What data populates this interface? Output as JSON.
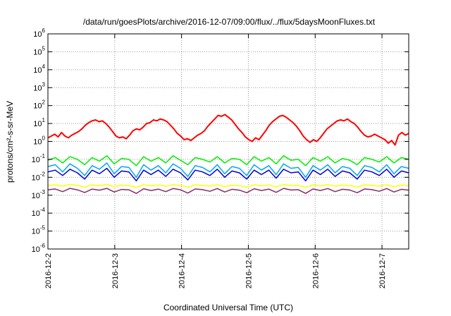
{
  "chart_data": {
    "type": "line",
    "title": "/data/run/goesPlots/archive/2016-12-07/09:00/flux/../flux/5daysMoonFluxes.txt",
    "xlabel": "Coordinated Universal Time (UTC)",
    "ylabel": "protons/cm²-s-sr-MeV",
    "y_scale": "log",
    "y_exponent_range": [
      -6,
      6
    ],
    "x_ticks": [
      "2016-12-2",
      "2016-12-3",
      "2016-12-4",
      "2016-12-5",
      "2016-12-6",
      "2016-12-7"
    ],
    "x_range_days": [
      0,
      5.4
    ],
    "grid": true,
    "legend": "none",
    "series": [
      {
        "color": "#ff0000",
        "log_values": [
          0.2,
          0.3,
          0.4,
          0.25,
          0.5,
          0.3,
          0.2,
          0.35,
          0.45,
          0.55,
          0.7,
          0.9,
          1.05,
          1.15,
          1.2,
          1.1,
          1.15,
          1.0,
          0.8,
          0.55,
          0.3,
          0.2,
          0.25,
          0.15,
          0.35,
          0.6,
          0.7,
          0.65,
          0.8,
          1.0,
          1.05,
          1.2,
          1.15,
          1.25,
          1.2,
          1.1,
          0.9,
          0.7,
          0.45,
          0.3,
          0.1,
          0.15,
          0.05,
          0.2,
          0.35,
          0.45,
          0.6,
          0.85,
          1.05,
          1.25,
          1.45,
          1.4,
          1.5,
          1.35,
          1.2,
          0.95,
          0.7,
          0.5,
          0.25,
          0.1,
          0.0,
          0.2,
          0.1,
          0.35,
          0.6,
          0.9,
          1.1,
          1.25,
          1.4,
          1.45,
          1.35,
          1.2,
          1.05,
          0.85,
          0.6,
          0.3,
          0.1,
          -0.05,
          0.1,
          0.0,
          0.2,
          0.45,
          0.7,
          0.85,
          1.0,
          1.15,
          1.2,
          1.15,
          1.25,
          1.1,
          1.0,
          0.8,
          0.55,
          0.35,
          0.25,
          0.3,
          0.4,
          0.3,
          0.2,
          0.1,
          -0.1,
          0.05,
          -0.2,
          0.35,
          0.5,
          0.35,
          0.45
        ]
      },
      {
        "color": "#00ee00",
        "log_values": [
          -1.05,
          -0.9,
          -1.2,
          -0.85,
          -1.0,
          -1.3,
          -0.9,
          -1.1,
          -0.8,
          -1.25,
          -0.95,
          -1.0,
          -1.35,
          -0.85,
          -1.1,
          -0.9,
          -1.2,
          -0.8,
          -1.05,
          -1.3,
          -0.9,
          -1.0,
          -1.15,
          -0.85,
          -1.2,
          -0.95,
          -1.0,
          -1.3,
          -0.85,
          -1.1,
          -0.9,
          -1.25,
          -0.8,
          -1.05,
          -1.0,
          -1.35,
          -0.9,
          -1.1,
          -0.85,
          -1.2,
          -0.95,
          -1.05,
          -1.3,
          -0.9,
          -1.0,
          -1.15,
          -0.85,
          -1.2,
          -0.9,
          -1.0
        ]
      },
      {
        "color": "#00aaee",
        "log_values": [
          -1.4,
          -1.3,
          -1.7,
          -1.25,
          -1.5,
          -1.9,
          -1.35,
          -1.55,
          -1.2,
          -1.8,
          -1.4,
          -1.45,
          -2.0,
          -1.3,
          -1.6,
          -1.35,
          -1.75,
          -1.25,
          -1.5,
          -1.95,
          -1.35,
          -1.45,
          -1.7,
          -1.3,
          -1.8,
          -1.4,
          -1.5,
          -1.9,
          -1.3,
          -1.6,
          -1.35,
          -1.85,
          -1.25,
          -1.5,
          -1.45,
          -2.0,
          -1.35,
          -1.6,
          -1.3,
          -1.75,
          -1.4,
          -1.5,
          -1.9,
          -1.35,
          -1.45,
          -1.7,
          -1.3,
          -1.8,
          -1.4,
          -1.5
        ]
      },
      {
        "color": "#0000dd",
        "log_values": [
          -1.7,
          -1.6,
          -1.9,
          -1.55,
          -1.75,
          -2.1,
          -1.6,
          -1.8,
          -1.5,
          -2.0,
          -1.65,
          -1.7,
          -2.2,
          -1.6,
          -1.85,
          -1.6,
          -1.95,
          -1.55,
          -1.75,
          -2.15,
          -1.6,
          -1.7,
          -1.9,
          -1.55,
          -2.0,
          -1.65,
          -1.75,
          -2.1,
          -1.6,
          -1.85,
          -1.6,
          -2.05,
          -1.55,
          -1.75,
          -1.7,
          -2.2,
          -1.6,
          -1.85,
          -1.55,
          -1.95,
          -1.65,
          -1.75,
          -2.1,
          -1.6,
          -1.7,
          -1.9,
          -1.55,
          -2.0,
          -1.65,
          -1.75
        ]
      },
      {
        "color": "#ffff00",
        "log_values": [
          -2.45,
          -2.42,
          -2.5,
          -2.4,
          -2.45,
          -2.55,
          -2.42,
          -2.47,
          -2.4,
          -2.52,
          -2.44,
          -2.46,
          -2.56,
          -2.42,
          -2.48,
          -2.43,
          -2.5,
          -2.41,
          -2.46,
          -2.55,
          -2.42,
          -2.45,
          -2.5,
          -2.41,
          -2.52,
          -2.44,
          -2.47,
          -2.55,
          -2.42,
          -2.48,
          -2.43,
          -2.53,
          -2.41,
          -2.46,
          -2.45,
          -2.56,
          -2.42,
          -2.48,
          -2.41,
          -2.5,
          -2.44,
          -2.46,
          -2.55,
          -2.42,
          -2.45,
          -2.5,
          -2.41,
          -2.52,
          -2.44,
          -2.47
        ]
      },
      {
        "color": "#8b2a6a",
        "log_values": [
          -2.7,
          -2.65,
          -2.8,
          -2.62,
          -2.7,
          -2.85,
          -2.66,
          -2.72,
          -2.62,
          -2.82,
          -2.68,
          -2.7,
          -2.9,
          -2.64,
          -2.74,
          -2.66,
          -2.8,
          -2.63,
          -2.7,
          -2.88,
          -2.65,
          -2.69,
          -2.78,
          -2.63,
          -2.82,
          -2.67,
          -2.72,
          -2.86,
          -2.64,
          -2.74,
          -2.66,
          -2.84,
          -2.62,
          -2.71,
          -2.69,
          -2.9,
          -2.65,
          -2.74,
          -2.63,
          -2.8,
          -2.67,
          -2.71,
          -2.86,
          -2.65,
          -2.69,
          -2.78,
          -2.63,
          -2.82,
          -2.67,
          -2.72
        ]
      }
    ]
  }
}
